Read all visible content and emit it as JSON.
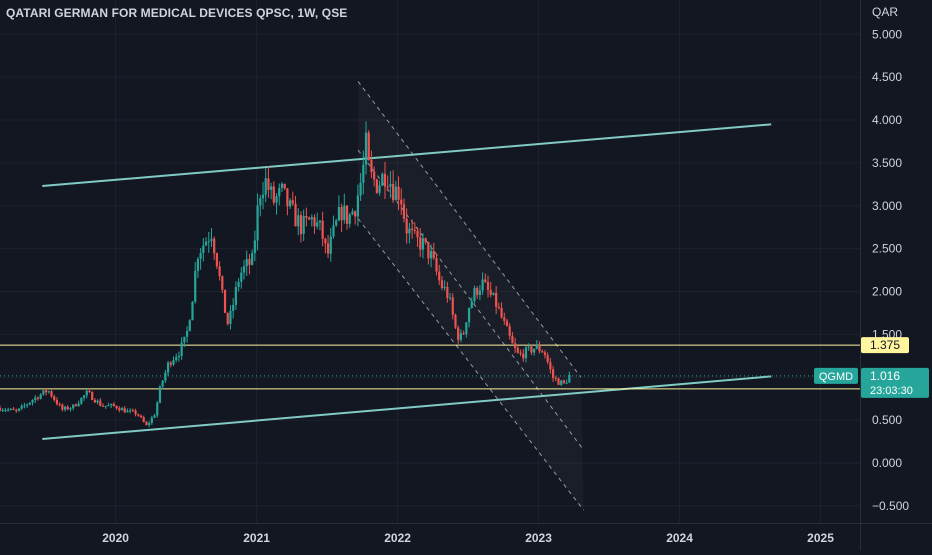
{
  "header": {
    "symbol_title": "QATARI GERMAN FOR MEDICAL DEVICES QPSC, 1W, QSE"
  },
  "price_axis": {
    "currency": "QAR",
    "ticks": [
      "5.000",
      "4.500",
      "4.000",
      "3.500",
      "3.000",
      "2.500",
      "2.000",
      "1.500",
      "1.000",
      "0.500",
      "0.000",
      "−0.500"
    ]
  },
  "time_axis": {
    "ticks": [
      "2020",
      "2021",
      "2022",
      "2023",
      "2024",
      "2025"
    ]
  },
  "markers": {
    "resistance_label": "1.375",
    "support_label": "0.865",
    "last_price_symbol": "QGMD",
    "last_price": "1.016",
    "countdown": "23:03:30"
  },
  "colors": {
    "background": "#131722",
    "grid": "#1e222d",
    "up_candle": "#26a69a",
    "down_candle": "#ef5350",
    "channel_line": "#80cbc4",
    "level_line": "#fff59d",
    "level_label_bg": "#fff59d",
    "last_price_bg": "#26a69a",
    "axis_text": "#d1d4dc"
  },
  "chart_data": {
    "type": "candlestick",
    "title": "QATARI GERMAN FOR MEDICAL DEVICES QPSC, 1W, QSE",
    "ylabel": "QAR",
    "ylim": [
      -0.7,
      5.4
    ],
    "xlim": [
      2019.18,
      2025.28
    ],
    "x_ticks": [
      2020,
      2021,
      2022,
      2023,
      2024,
      2025
    ],
    "y_ticks": [
      5.0,
      4.5,
      4.0,
      3.5,
      3.0,
      2.5,
      2.0,
      1.5,
      1.0,
      0.5,
      0.0,
      -0.5
    ],
    "close_path": [
      [
        2019.18,
        0.64
      ],
      [
        2019.3,
        0.6
      ],
      [
        2019.42,
        0.75
      ],
      [
        2019.52,
        0.85
      ],
      [
        2019.62,
        0.62
      ],
      [
        2019.7,
        0.66
      ],
      [
        2019.8,
        0.82
      ],
      [
        2019.9,
        0.67
      ],
      [
        2020.0,
        0.66
      ],
      [
        2020.08,
        0.6
      ],
      [
        2020.15,
        0.58
      ],
      [
        2020.22,
        0.43
      ],
      [
        2020.28,
        0.58
      ],
      [
        2020.32,
        0.9
      ],
      [
        2020.38,
        1.18
      ],
      [
        2020.45,
        1.3
      ],
      [
        2020.5,
        1.45
      ],
      [
        2020.55,
        2.0
      ],
      [
        2020.58,
        2.45
      ],
      [
        2020.62,
        2.55
      ],
      [
        2020.68,
        2.7
      ],
      [
        2020.72,
        2.35
      ],
      [
        2020.76,
        1.9
      ],
      [
        2020.8,
        1.6
      ],
      [
        2020.84,
        1.9
      ],
      [
        2020.88,
        2.2
      ],
      [
        2020.93,
        2.3
      ],
      [
        2020.97,
        2.35
      ],
      [
        2021.02,
        3.15
      ],
      [
        2021.06,
        3.3
      ],
      [
        2021.12,
        3.05
      ],
      [
        2021.18,
        3.15
      ],
      [
        2021.24,
        2.95
      ],
      [
        2021.32,
        2.75
      ],
      [
        2021.4,
        2.85
      ],
      [
        2021.46,
        2.7
      ],
      [
        2021.5,
        2.4
      ],
      [
        2021.55,
        2.7
      ],
      [
        2021.6,
        2.95
      ],
      [
        2021.65,
        2.85
      ],
      [
        2021.7,
        3.0
      ],
      [
        2021.75,
        3.35
      ],
      [
        2021.78,
        3.75
      ],
      [
        2021.8,
        3.35
      ],
      [
        2021.86,
        3.25
      ],
      [
        2021.92,
        3.4
      ],
      [
        2021.97,
        3.2
      ],
      [
        2022.02,
        3.15
      ],
      [
        2022.06,
        2.75
      ],
      [
        2022.12,
        2.6
      ],
      [
        2022.18,
        2.55
      ],
      [
        2022.24,
        2.4
      ],
      [
        2022.3,
        2.1
      ],
      [
        2022.36,
        1.95
      ],
      [
        2022.42,
        1.5
      ],
      [
        2022.46,
        1.45
      ],
      [
        2022.5,
        1.8
      ],
      [
        2022.55,
        2.0
      ],
      [
        2022.6,
        2.1
      ],
      [
        2022.64,
        2.0
      ],
      [
        2022.7,
        1.85
      ],
      [
        2022.76,
        1.6
      ],
      [
        2022.82,
        1.35
      ],
      [
        2022.86,
        1.25
      ],
      [
        2022.92,
        1.3
      ],
      [
        2022.98,
        1.35
      ],
      [
        2023.04,
        1.3
      ],
      [
        2023.1,
        1.0
      ],
      [
        2023.14,
        0.95
      ],
      [
        2023.18,
        0.92
      ],
      [
        2023.22,
        1.02
      ]
    ],
    "annotations": {
      "horizontal_levels": [
        1.375,
        0.865
      ],
      "last_price": 1.016,
      "upper_trendline": [
        [
          2019.48,
          3.23
        ],
        [
          2024.65,
          3.95
        ]
      ],
      "lower_trendline": [
        [
          2019.48,
          0.28
        ],
        [
          2024.65,
          1.01
        ]
      ],
      "descending_channel_top": [
        [
          2021.72,
          4.45
        ],
        [
          2023.3,
          1.0
        ]
      ],
      "descending_channel_mid": [
        [
          2021.72,
          3.65
        ],
        [
          2023.32,
          0.15
        ]
      ],
      "descending_channel_bottom": [
        [
          2021.72,
          2.85
        ],
        [
          2023.32,
          -0.55
        ]
      ]
    }
  }
}
